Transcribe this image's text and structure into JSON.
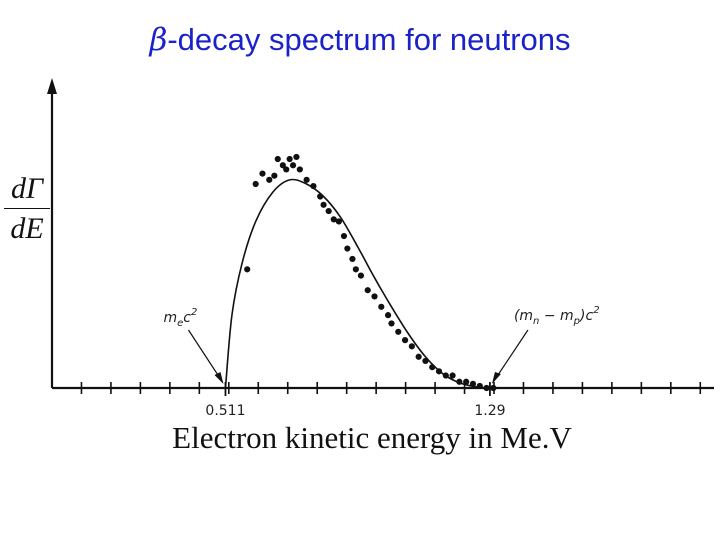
{
  "title": {
    "symbol": "β",
    "text": "-decay spectrum for neutrons"
  },
  "chart_data": {
    "type": "scatter",
    "title": "β-decay spectrum for neutrons",
    "xlabel": "Electron kinetic energy in Me.V",
    "ylabel": {
      "numerator": "dΓ",
      "denominator": "dE"
    },
    "xlim": [
      0,
      1.95
    ],
    "ylim": [
      0,
      1.35
    ],
    "x_tick_labels": [
      {
        "x": 0.511,
        "label": "0.511"
      },
      {
        "x": 1.29,
        "label": "1.29"
      }
    ],
    "x_minor_tick_step": 0.0868,
    "annotations": [
      {
        "name": "electron-mass-annotation",
        "x": 0.511,
        "text": "m",
        "sub": "e",
        "rest": "c",
        "sup": "2"
      },
      {
        "name": "mass-difference-annotation",
        "x": 1.29,
        "text": "(m",
        "sub": "n",
        "mid": " − m",
        "sub2": "p",
        "rest": ")c",
        "sup": "2"
      }
    ],
    "series": [
      {
        "kind": "theory-curve",
        "x": [
          0.511,
          0.53,
          0.56,
          0.6,
          0.65,
          0.7,
          0.75,
          0.8,
          0.85,
          0.9,
          0.95,
          1.0,
          1.05,
          1.1,
          1.15,
          1.2,
          1.25,
          1.29
        ],
        "values": [
          0.0,
          0.35,
          0.6,
          0.8,
          0.94,
          1.0,
          0.98,
          0.92,
          0.82,
          0.68,
          0.53,
          0.39,
          0.26,
          0.15,
          0.07,
          0.025,
          0.005,
          0.0
        ]
      },
      {
        "kind": "measurements",
        "x": [
          0.575,
          0.6,
          0.62,
          0.64,
          0.655,
          0.665,
          0.68,
          0.69,
          0.7,
          0.71,
          0.72,
          0.73,
          0.75,
          0.77,
          0.79,
          0.8,
          0.815,
          0.83,
          0.845,
          0.86,
          0.87,
          0.885,
          0.895,
          0.91,
          0.93,
          0.95,
          0.97,
          0.99,
          1.0,
          1.02,
          1.04,
          1.06,
          1.08,
          1.1,
          1.12,
          1.14,
          1.16,
          1.18,
          1.2,
          1.22,
          1.24,
          1.26,
          1.28,
          1.3
        ],
        "values": [
          0.57,
          0.98,
          1.03,
          1.0,
          1.02,
          1.1,
          1.07,
          1.05,
          1.1,
          1.07,
          1.11,
          1.05,
          1.0,
          0.97,
          0.92,
          0.88,
          0.85,
          0.81,
          0.8,
          0.73,
          0.67,
          0.62,
          0.57,
          0.54,
          0.47,
          0.44,
          0.39,
          0.35,
          0.31,
          0.27,
          0.23,
          0.2,
          0.15,
          0.13,
          0.1,
          0.08,
          0.06,
          0.06,
          0.03,
          0.03,
          0.02,
          0.01,
          0.0,
          0.0
        ]
      }
    ]
  },
  "colors": {
    "title": "#1a22c8",
    "ink": "#111111"
  }
}
